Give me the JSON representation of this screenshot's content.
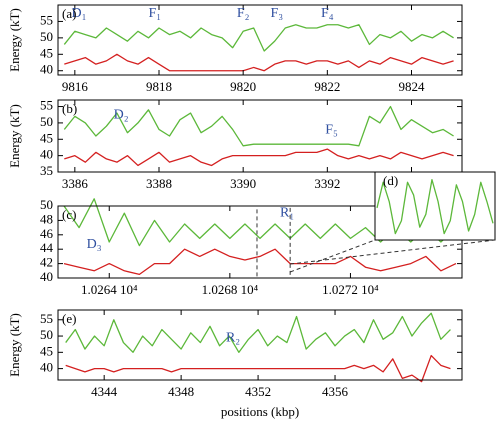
{
  "chart_data": [
    {
      "type": "line",
      "panel_label": "(a)",
      "ylabel": "Energy (kT)",
      "x": [
        9815.75,
        9816.0,
        9816.25,
        9816.5,
        9816.75,
        9817.0,
        9817.25,
        9817.5,
        9817.75,
        9818.0,
        9818.25,
        9818.5,
        9818.75,
        9819.0,
        9819.25,
        9819.5,
        9819.75,
        9820.0,
        9820.25,
        9820.5,
        9820.75,
        9821.0,
        9821.25,
        9821.5,
        9821.75,
        9822.0,
        9822.25,
        9822.5,
        9822.75,
        9823.0,
        9823.25,
        9823.5,
        9823.75,
        9824.0,
        9824.25,
        9824.5,
        9824.75,
        9825.0
      ],
      "series": [
        {
          "color": "#5cb83a",
          "values": [
            48,
            52,
            51,
            50,
            53,
            51,
            49,
            52,
            50,
            53,
            51,
            52,
            50,
            53,
            51,
            50,
            47,
            52,
            53,
            46,
            49,
            53,
            54,
            53,
            53,
            54,
            54,
            53,
            54,
            48,
            51,
            50,
            52,
            49,
            51,
            50,
            52,
            50
          ]
        },
        {
          "color": "#d42020",
          "values": [
            42,
            43,
            44,
            42,
            43,
            45,
            43,
            42,
            44,
            42,
            40,
            40,
            40,
            40,
            40,
            40,
            40,
            40,
            41,
            40,
            42,
            43,
            43,
            42,
            43,
            43,
            42,
            43,
            41,
            43,
            42,
            44,
            43,
            42,
            44,
            43,
            42,
            43
          ]
        }
      ],
      "xlim": [
        9815.6,
        9825.2
      ],
      "xticks": [
        9816,
        9818,
        9820,
        9822,
        9824
      ],
      "ylim": [
        38.7,
        60
      ],
      "yticks": [
        40,
        45,
        50,
        55
      ],
      "annotations": [
        {
          "text": "D₁",
          "x": 9816.1,
          "y": 57.3
        },
        {
          "text": "F₁",
          "x": 9817.9,
          "y": 57.3
        },
        {
          "text": "F₂",
          "x": 9820.0,
          "y": 57.3
        },
        {
          "text": "F₃",
          "x": 9820.8,
          "y": 57.3
        },
        {
          "text": "F₄",
          "x": 9822.0,
          "y": 57.3
        }
      ]
    },
    {
      "type": "line",
      "panel_label": "(b)",
      "ylabel": "Energy (kT)",
      "x": [
        3385.75,
        3386.0,
        3386.25,
        3386.5,
        3386.75,
        3387.0,
        3387.25,
        3387.5,
        3387.75,
        3388.0,
        3388.25,
        3388.5,
        3388.75,
        3389.0,
        3389.25,
        3389.5,
        3389.75,
        3390.0,
        3390.25,
        3390.5,
        3390.75,
        3391.0,
        3391.25,
        3391.5,
        3391.75,
        3392.0,
        3392.25,
        3392.5,
        3392.75,
        3393.0,
        3393.25,
        3393.5,
        3393.75,
        3394.0,
        3394.25,
        3394.5,
        3394.75,
        3395.0
      ],
      "series": [
        {
          "color": "#5cb83a",
          "values": [
            48,
            52,
            50,
            46,
            49,
            53,
            47,
            50,
            54,
            48,
            46,
            51,
            53,
            47,
            49,
            52,
            48,
            43,
            43.5,
            43.5,
            43.5,
            43.5,
            43.5,
            43.5,
            43.5,
            43.5,
            43.5,
            43.5,
            43,
            52,
            50,
            55,
            48,
            51,
            49,
            47,
            48,
            46
          ]
        },
        {
          "color": "#d42020",
          "values": [
            39,
            40,
            38,
            41,
            39,
            38,
            40,
            37,
            39,
            41,
            38,
            39,
            40,
            38,
            37,
            39,
            40,
            40,
            40,
            40,
            40,
            40,
            41,
            41,
            41,
            42,
            40,
            39,
            40,
            39,
            40,
            39,
            41,
            40,
            39,
            40,
            41,
            40
          ]
        }
      ],
      "xlim": [
        3385.6,
        3395.2
      ],
      "xticks": [
        3386,
        3388,
        3390,
        3392,
        3394
      ],
      "ylim": [
        35,
        57
      ],
      "yticks": [
        35,
        40,
        45,
        50,
        55
      ],
      "annotations": [
        {
          "text": "D₂",
          "x": 3387.1,
          "y": 52.3
        },
        {
          "text": "F₅",
          "x": 3392.1,
          "y": 47.8
        }
      ]
    },
    {
      "type": "line",
      "panel_label": "(c)",
      "x": [
        10262.5,
        10263.0,
        10263.5,
        10264.0,
        10264.5,
        10265.0,
        10265.5,
        10266.0,
        10266.5,
        10267.0,
        10267.5,
        10268.0,
        10268.5,
        10269.0,
        10269.5,
        10270.0,
        10270.5,
        10271.0,
        10271.5,
        10272.0,
        10272.5,
        10273.0,
        10273.5,
        10274.0,
        10274.5,
        10275.0,
        10275.5
      ],
      "series": [
        {
          "color": "#5cb83a",
          "values": [
            50,
            47,
            51,
            45,
            49,
            44.5,
            48,
            45,
            47.5,
            45.5,
            47.5,
            45.5,
            47.5,
            45.5,
            47.5,
            45.5,
            47.5,
            45.5,
            47.5,
            45.5,
            47,
            45,
            47,
            45,
            47,
            45,
            47
          ]
        },
        {
          "color": "#d42020",
          "values": [
            42,
            41.5,
            41,
            42,
            41,
            40.5,
            42,
            42,
            44,
            43,
            44,
            43,
            42.5,
            43,
            44,
            42,
            42,
            42,
            42,
            43,
            41.5,
            41,
            41.5,
            42,
            43,
            41,
            42
          ]
        }
      ],
      "xlim": [
        10262.3,
        10275.7
      ],
      "xticks": [
        {
          "value": 10264,
          "label": "1.0264 10⁴"
        },
        {
          "value": 10268,
          "label": "1.0268 10⁴"
        },
        {
          "value": 10272,
          "label": "1.0272 10⁴"
        }
      ],
      "ylim": [
        40,
        50
      ],
      "yticks": [
        40,
        42,
        44,
        46,
        48,
        50
      ],
      "highlight_x": [
        10268.9,
        10270.0
      ],
      "annotations": [
        {
          "text": "D₃",
          "x": 10263.5,
          "y": 44.6
        },
        {
          "text": "R₁",
          "x": 10269.9,
          "y": 49.0
        }
      ]
    },
    {
      "type": "line",
      "panel_label": "(d)",
      "series": [
        {
          "color": "#5cb83a",
          "values": [
            46,
            48,
            46.5,
            44,
            45,
            48,
            47,
            44.5,
            45.5,
            48.2,
            46.5,
            44,
            45,
            47.8,
            46.5,
            44.2,
            45.5,
            48,
            46.5,
            44.8
          ]
        }
      ],
      "ylim": [
        43.5,
        48.8
      ]
    },
    {
      "type": "line",
      "panel_label": "(e)",
      "ylabel": "Energy (kT)",
      "xlabel": "positions (kbp)",
      "x": [
        4342,
        4342.5,
        4343,
        4343.5,
        4344,
        4344.5,
        4345,
        4345.5,
        4346,
        4346.5,
        4347,
        4347.5,
        4348,
        4348.5,
        4349,
        4349.5,
        4350,
        4350.5,
        4351,
        4351.5,
        4352,
        4352.5,
        4353,
        4353.5,
        4354,
        4354.5,
        4355,
        4355.5,
        4356,
        4356.5,
        4357,
        4357.5,
        4358,
        4358.5,
        4359,
        4359.5,
        4360,
        4360.5,
        4361,
        4361.5,
        4362
      ],
      "series": [
        {
          "color": "#5cb83a",
          "values": [
            48,
            52,
            46,
            50,
            47,
            55,
            48,
            45,
            50,
            47,
            52,
            49,
            46,
            51,
            48,
            53,
            47,
            50,
            45,
            49,
            52,
            47,
            50,
            48,
            56,
            46,
            49,
            51,
            47,
            50,
            52,
            48,
            55,
            49,
            51,
            56,
            50,
            54,
            57,
            49,
            52
          ]
        },
        {
          "color": "#d42020",
          "values": [
            41,
            40,
            39,
            40,
            40,
            39,
            40,
            40,
            40,
            40,
            40,
            39,
            40,
            40,
            40,
            40,
            40,
            40,
            40,
            40,
            40,
            40,
            40,
            40,
            40,
            40,
            40,
            40,
            40,
            40,
            41,
            40,
            41,
            39,
            43,
            37,
            38,
            36,
            44,
            41,
            40
          ]
        }
      ],
      "xlim": [
        4341.6,
        4362.6
      ],
      "xticks": [
        4344,
        4348,
        4352,
        4356
      ],
      "ylim": [
        36.5,
        58
      ],
      "yticks": [
        40,
        45,
        50,
        55
      ],
      "annotations": [
        {
          "text": "R₂",
          "x": 4350.7,
          "y": 49.3
        }
      ]
    }
  ]
}
